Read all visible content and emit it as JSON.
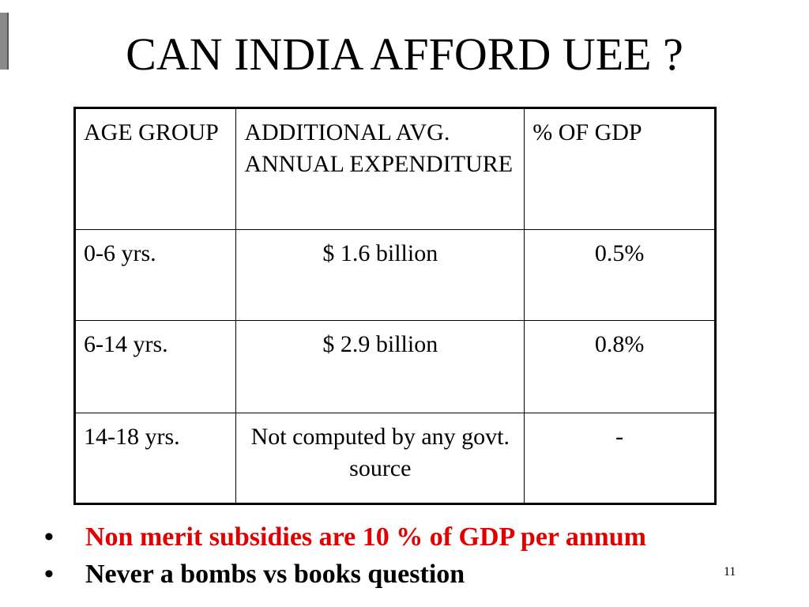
{
  "slide": {
    "title": "CAN INDIA AFFORD UEE ?",
    "page_number": "11"
  },
  "table": {
    "headers": {
      "col1": "AGE GROUP",
      "col2": "ADDITIONAL AVG. ANNUAL EXPENDITURE",
      "col3": "% OF GDP"
    },
    "rows": [
      {
        "age_group": "0-6 yrs.",
        "expenditure": "$ 1.6 billion",
        "gdp_percent": "0.5%"
      },
      {
        "age_group": "6-14 yrs.",
        "expenditure": "$ 2.9 billion",
        "gdp_percent": "0.8%"
      },
      {
        "age_group": "14-18 yrs.",
        "expenditure": "Not computed by any govt. source",
        "gdp_percent": "-"
      }
    ]
  },
  "bullets": [
    {
      "text": "Non merit subsidies are 10 % of GDP per annum",
      "color": "#e00000"
    },
    {
      "text": "Never a bombs vs books question",
      "color": "#000000"
    }
  ],
  "bullet_symbol": "•"
}
